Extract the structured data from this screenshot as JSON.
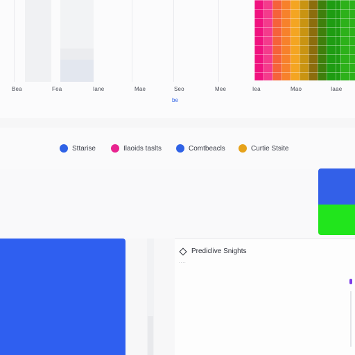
{
  "chart_data": {
    "type": "bar",
    "categories": [
      "Bea",
      "Fea",
      "Iane",
      "Mae",
      "Seo",
      "Mee",
      "Iea",
      "Mao",
      "Iaae"
    ],
    "link_label": "be"
  },
  "legend": {
    "items": [
      {
        "label": "Sttarise",
        "color": "#2f62e6"
      },
      {
        "label": "Ilaoids taslts",
        "color": "#e8238f"
      },
      {
        "label": "Comtbeacls",
        "color": "#2f62e6"
      },
      {
        "label": "Curtie Stsite",
        "color": "#e6a21a"
      }
    ]
  },
  "insights": {
    "title": "Prediclive Snights",
    "subtitle": "...."
  },
  "colors": {
    "heat": [
      "#f0127f",
      "#f43b8c",
      "#f5623a",
      "#f7812b",
      "#f4a522",
      "#c99412",
      "#8c6d0d",
      "#3f7f0c",
      "#1e9c12",
      "#2db11a"
    ],
    "accent_blue": "#2f5ff0",
    "accent_green": "#21e51c",
    "scroll_purple": "#7b3be6"
  }
}
